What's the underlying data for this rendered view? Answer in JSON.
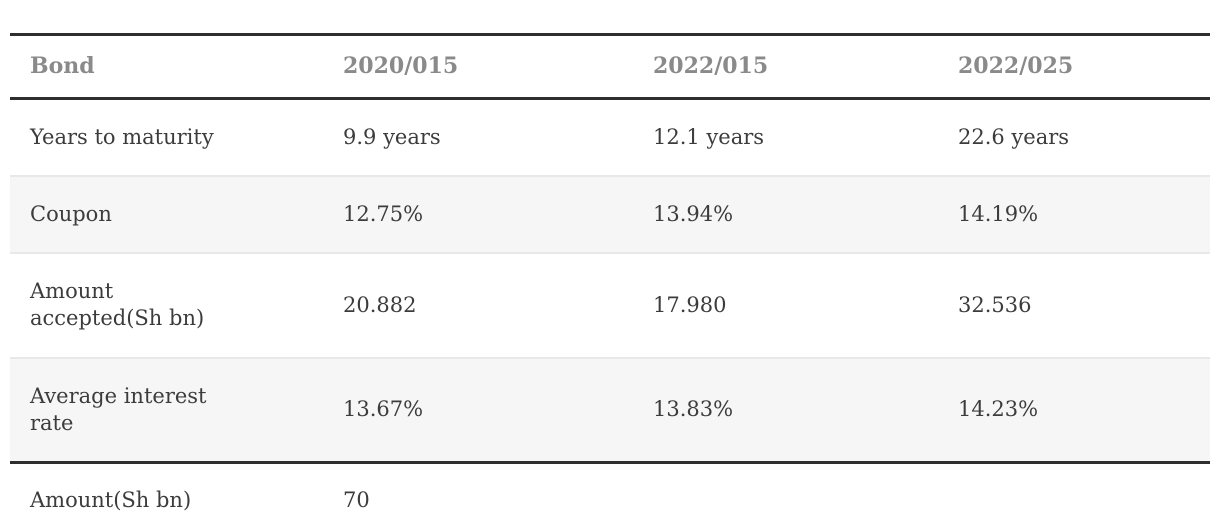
{
  "chart_data": {
    "type": "table",
    "columns": [
      "Bond",
      "2020/015",
      "2022/015",
      "2022/025"
    ],
    "rows": [
      {
        "label": "Years to maturity",
        "values": [
          "9.9 years",
          "12.1 years",
          "22.6 years"
        ]
      },
      {
        "label": "Coupon",
        "values": [
          "12.75%",
          "13.94%",
          "14.19%"
        ]
      },
      {
        "label": "Amount accepted(Sh bn)",
        "values": [
          "20.882",
          "17.980",
          "32.536"
        ]
      },
      {
        "label": "Average interest rate",
        "values": [
          "13.67%",
          "13.83%",
          "14.23%"
        ]
      },
      {
        "label": "Amount(Sh bn)",
        "values": [
          "70",
          "",
          ""
        ]
      }
    ],
    "layout": {
      "legend": "none",
      "grid": "horizontal-rules",
      "zebra_striped_row_labels": [
        "Coupon",
        "Average interest rate"
      ],
      "thick_rules": [
        "above header",
        "below header",
        "above Amount(Sh bn) row",
        "table bottom"
      ]
    }
  },
  "colors": {
    "header_text": "#8a8a8a",
    "body_text": "#3c3c3c",
    "thick_rule": "#2e2e2e",
    "thin_rule": "#e8e8e8",
    "zebra_row_bg": "#f6f6f6",
    "background": "#ffffff"
  }
}
